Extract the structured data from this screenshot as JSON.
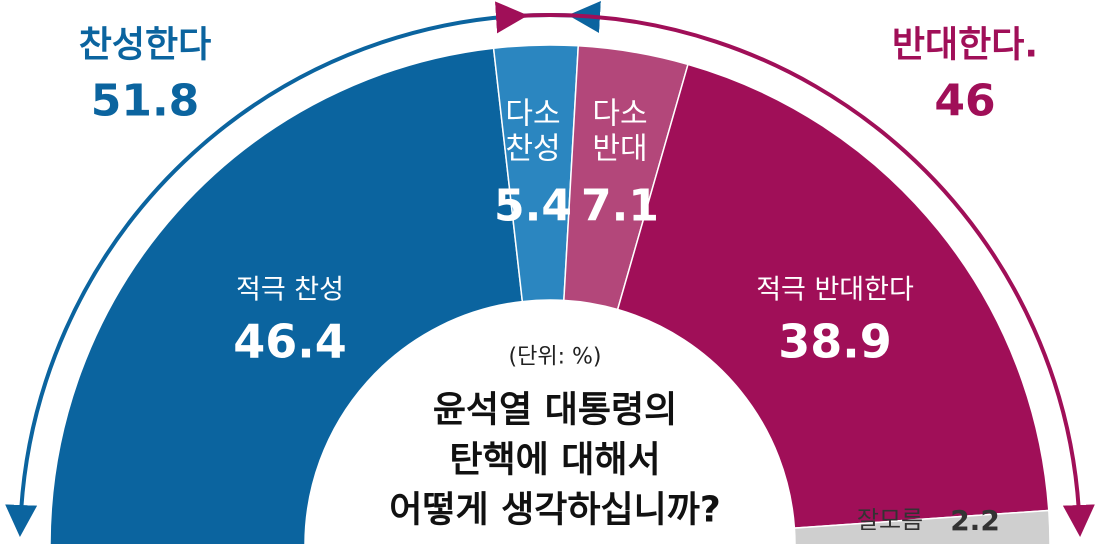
{
  "chart_data": {
    "type": "semi-donut",
    "unit": "(단위: %)",
    "question": [
      "윤석열 대통령의",
      "탄핵에 대해서",
      "어떻게 생각하십니까?"
    ],
    "segments": [
      {
        "name": "적극 찬성",
        "value": 46.4,
        "color": "#0b649f"
      },
      {
        "name": "다소 찬성",
        "value": 5.4,
        "color": "#2b86c0"
      },
      {
        "name": "다소 반대",
        "value": 7.1,
        "color": "#b3477a"
      },
      {
        "name": "적극 반대한다",
        "value": 38.9,
        "color": "#a00f58"
      },
      {
        "name": "잘모름",
        "value": 2.2,
        "color": "#cfcfcf"
      }
    ],
    "totals": [
      {
        "name": "찬성한다",
        "value": 51.8,
        "color": "#0b649f"
      },
      {
        "name": "반대한다.",
        "value": 46,
        "color": "#a00f58"
      }
    ]
  }
}
